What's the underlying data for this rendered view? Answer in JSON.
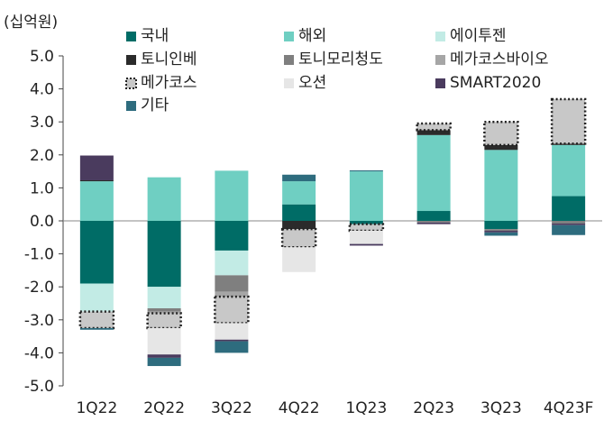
{
  "chart_data": {
    "type": "bar",
    "stacked": true,
    "title": "",
    "unit_label": "(십억원)",
    "xlabel": "",
    "ylabel": "",
    "ylim": [
      -5.0,
      5.0
    ],
    "yticks": [
      "5.0",
      "4.0",
      "3.0",
      "2.0",
      "1.0",
      "0.0",
      "-1.0",
      "-2.0",
      "-3.0",
      "-4.0",
      "-5.0"
    ],
    "grid": false,
    "legend_position": "top",
    "categories": [
      "1Q22",
      "2Q22",
      "3Q22",
      "4Q22",
      "1Q23",
      "2Q23",
      "3Q23",
      "4Q23F"
    ],
    "series": [
      {
        "name": "국내",
        "color": "#006c66",
        "values": [
          -1.9,
          -2.0,
          -0.9,
          0.5,
          -0.1,
          0.3,
          -0.25,
          0.75
        ]
      },
      {
        "name": "해외",
        "color": "#6fcfc2",
        "values": [
          1.2,
          1.32,
          1.52,
          0.7,
          1.5,
          2.3,
          2.15,
          1.55
        ]
      },
      {
        "name": "에이투젠",
        "color": "#c2ebe5",
        "values": [
          -0.85,
          -0.65,
          -0.75,
          0,
          0,
          0,
          0,
          0
        ]
      },
      {
        "name": "토니인베",
        "color": "#2b2b2b",
        "values": [
          0.03,
          0,
          0,
          -0.25,
          0,
          0.15,
          0.15,
          0.04
        ]
      },
      {
        "name": "토니모리청도",
        "color": "#7f7f7f",
        "values": [
          0,
          -0.1,
          -0.5,
          0,
          0,
          -0.05,
          -0.05,
          -0.08
        ]
      },
      {
        "name": "메가코스바이오",
        "color": "#a6a6a6",
        "values": [
          0,
          -0.05,
          -0.15,
          0,
          0,
          0,
          0,
          0
        ]
      },
      {
        "name": "메가코스",
        "color": "#c8c8c8",
        "dotted_outline": true,
        "values": [
          -0.5,
          -0.45,
          -0.8,
          -0.55,
          -0.2,
          0.2,
          0.7,
          1.35
        ]
      },
      {
        "name": "오션",
        "color": "#e6e6e6",
        "values": [
          0,
          -0.8,
          -0.5,
          -0.75,
          -0.4,
          0,
          0,
          0
        ]
      },
      {
        "name": "SMART2020",
        "color": "#4a3b5e",
        "values": [
          0.75,
          -0.1,
          -0.05,
          0,
          -0.05,
          -0.05,
          -0.05,
          -0.05
        ]
      },
      {
        "name": "기타",
        "color": "#2e6c7e",
        "values": [
          -0.05,
          -0.25,
          -0.35,
          0.2,
          0.03,
          0,
          -0.1,
          -0.3
        ]
      }
    ]
  }
}
